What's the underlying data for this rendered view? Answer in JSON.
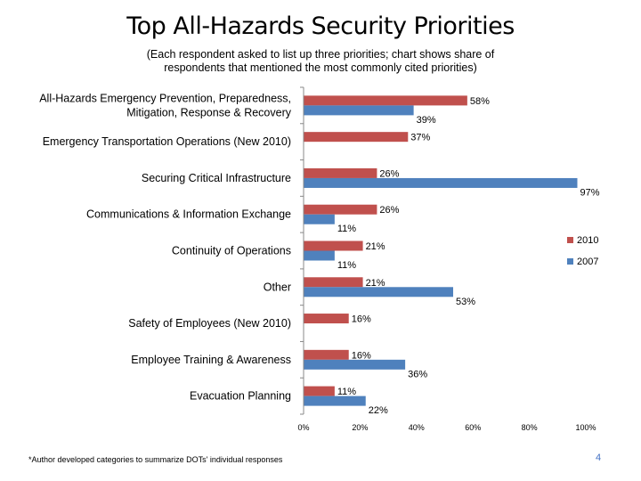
{
  "header": {
    "title": "Top All-Hazards Security Priorities",
    "subtitle": "(Each respondent asked to list up three priorities; chart shows share of respondents that mentioned the most commonly cited priorities)"
  },
  "footer": {
    "footnote": "*Author developed categories to summarize DOTs' individual responses",
    "page_number": "4"
  },
  "chart_data": {
    "type": "bar",
    "orientation": "horizontal",
    "title": "Top All-Hazards Security Priorities",
    "categories": [
      "All-Hazards Emergency Prevention, Preparedness, Mitigation, Response & Recovery",
      "Emergency Transportation Operations (New 2010)",
      "Securing Critical Infrastructure",
      "Communications & Information Exchange",
      "Continuity of Operations",
      "Other",
      "Safety of Employees (New 2010)",
      "Employee Training & Awareness",
      "Evacuation Planning"
    ],
    "series": [
      {
        "name": "2010",
        "color": "#c0504d",
        "values": [
          58,
          37,
          26,
          26,
          21,
          21,
          16,
          16,
          11
        ]
      },
      {
        "name": "2007",
        "color": "#4f81bd",
        "values": [
          39,
          null,
          97,
          11,
          11,
          53,
          null,
          36,
          22
        ]
      }
    ],
    "xlim": [
      0,
      100
    ],
    "xticks": [
      "0%",
      "20%",
      "40%",
      "60%",
      "80%",
      "100%"
    ],
    "value_suffix": "%",
    "legend": "right",
    "grid": false
  }
}
